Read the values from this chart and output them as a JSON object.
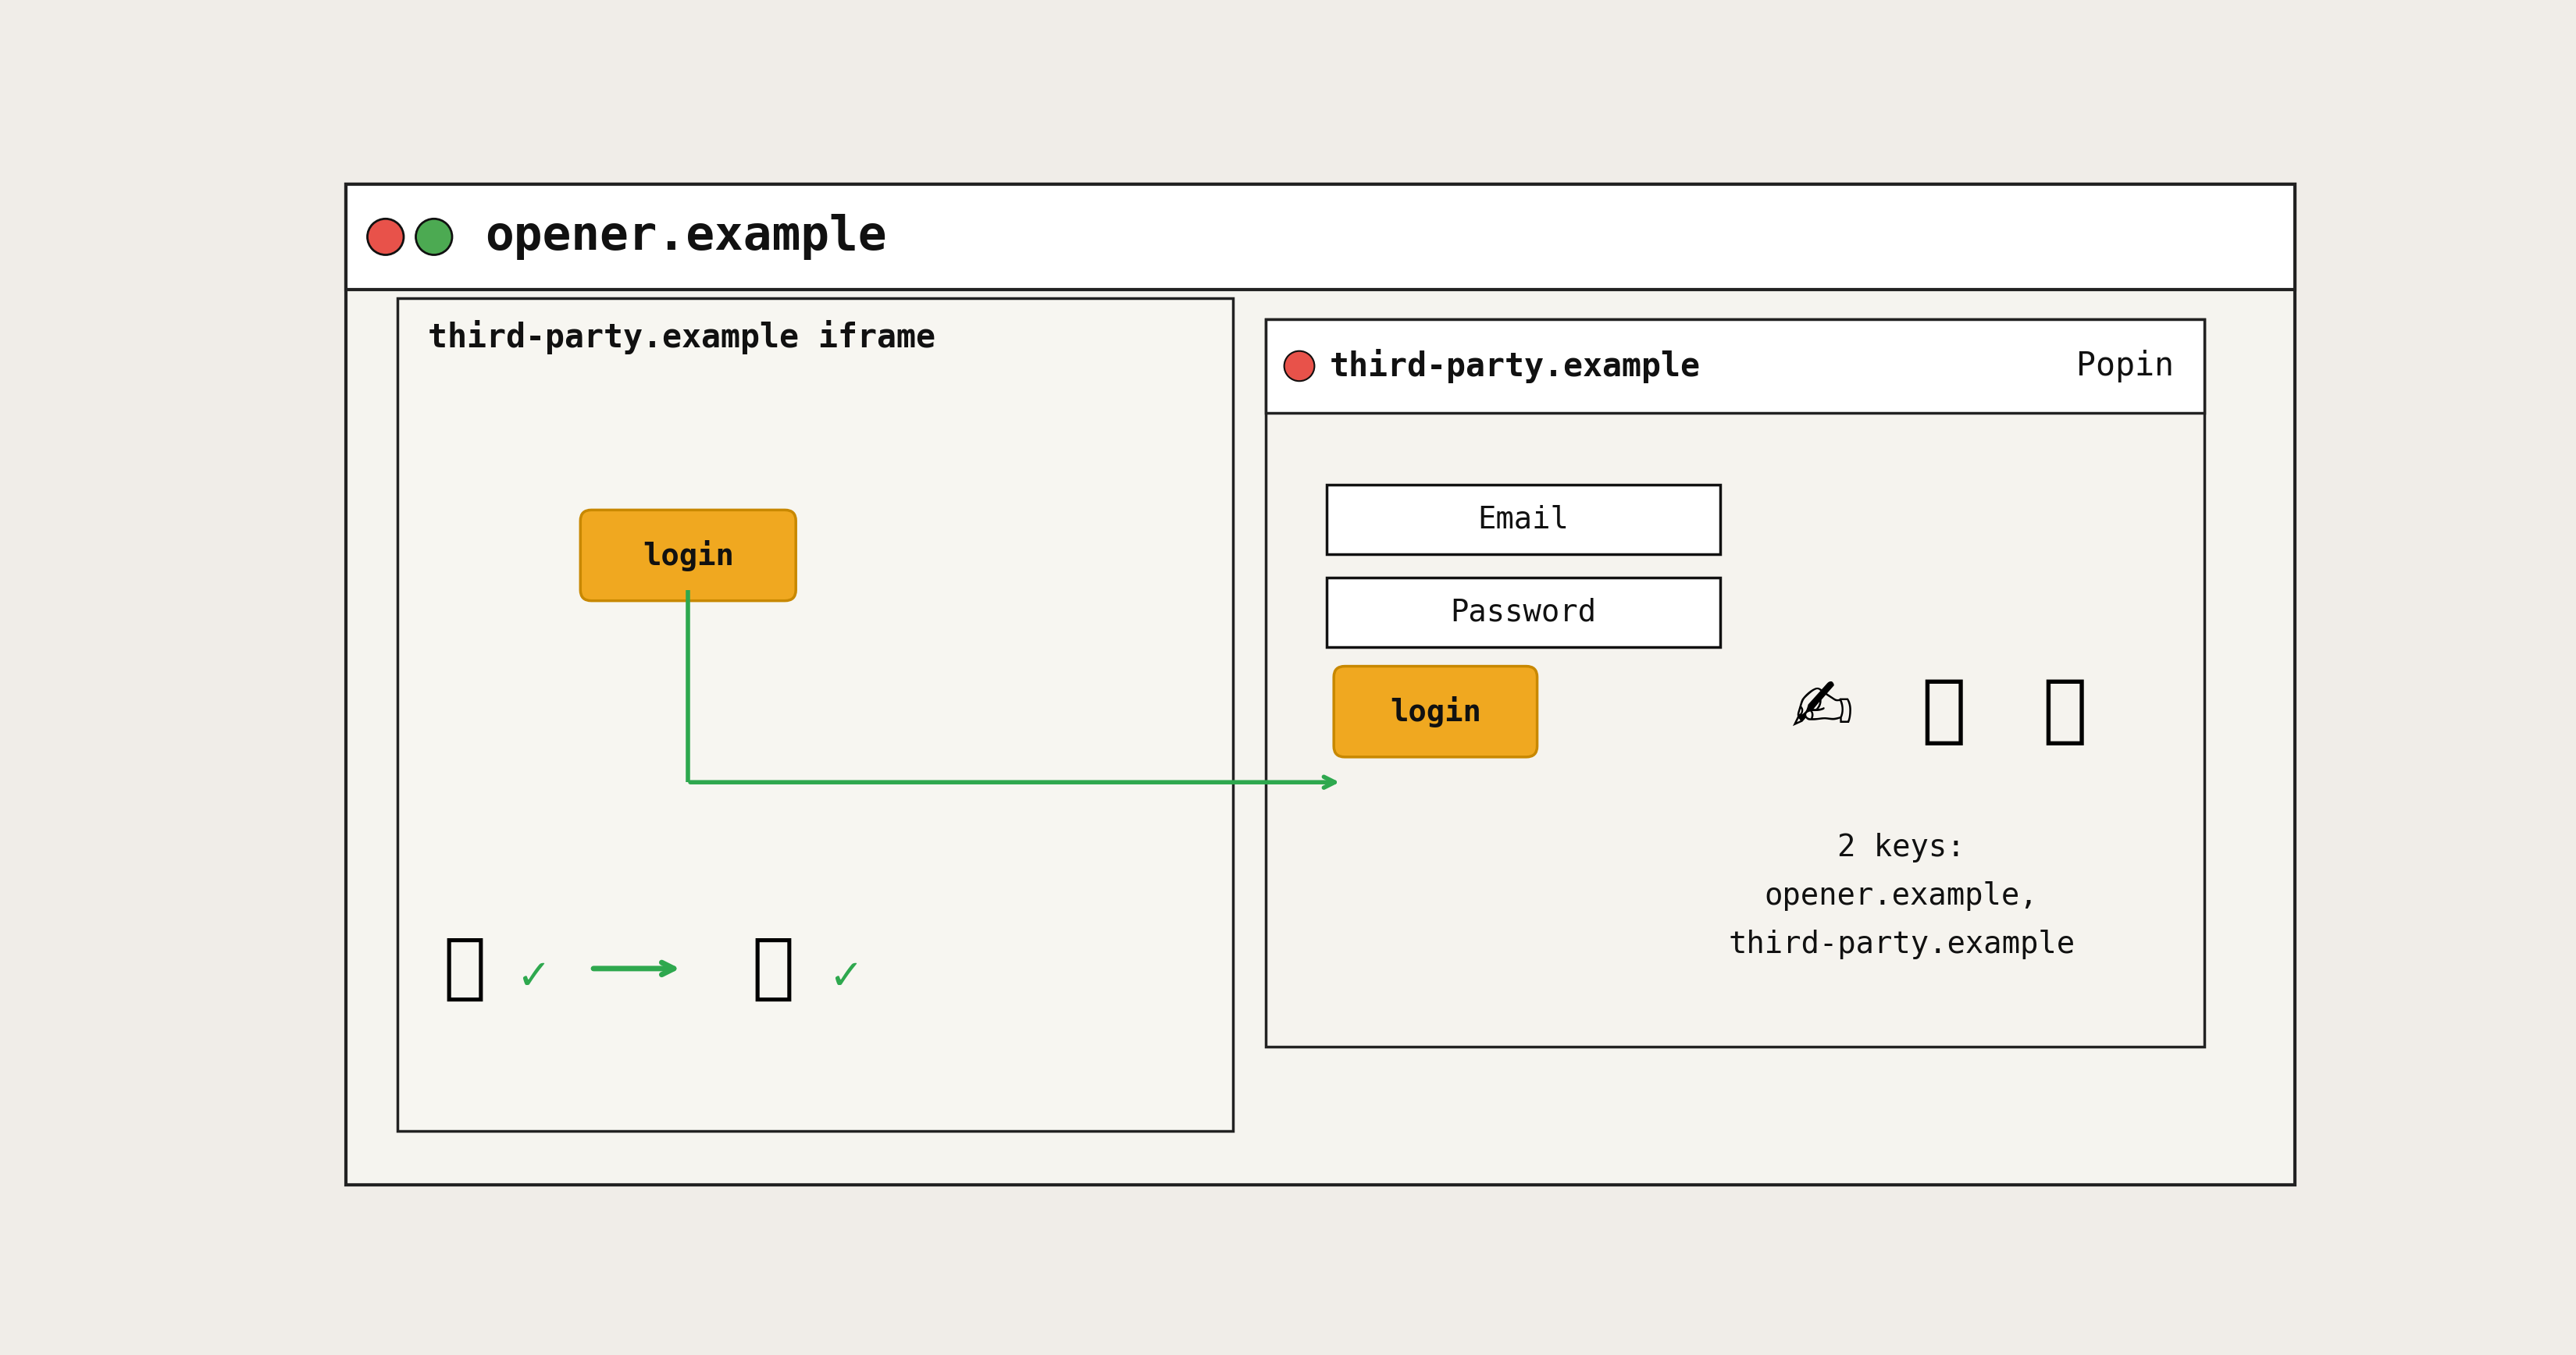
{
  "bg_color": "#f0ede8",
  "inner_bg": "#f5f4ef",
  "white": "#ffffff",
  "title_bar_color": "#ffffff",
  "opener_title": "opener.example",
  "red_dot_color": "#e8524a",
  "green_dot_color": "#4caa52",
  "iframe_label": "third-party.example iframe",
  "iframe_bg": "#f7f6f1",
  "iframe_border": "#222222",
  "popin_label": "third-party.example",
  "popin_tag": "Popin",
  "popin_bg": "#f5f3ee",
  "popin_border": "#222222",
  "popin_dot_color": "#e8524a",
  "login_btn_color": "#f0a820",
  "login_btn_border": "#c88800",
  "login_text": "login",
  "email_label": "Email",
  "password_label": "Password",
  "arrow_color": "#2ea84e",
  "check_color": "#2ea84e",
  "keys_text": "2 keys:\nopener.example,\nthird-party.example",
  "font_family": "monospace",
  "outer_lw": 3,
  "inner_lw": 2.5
}
